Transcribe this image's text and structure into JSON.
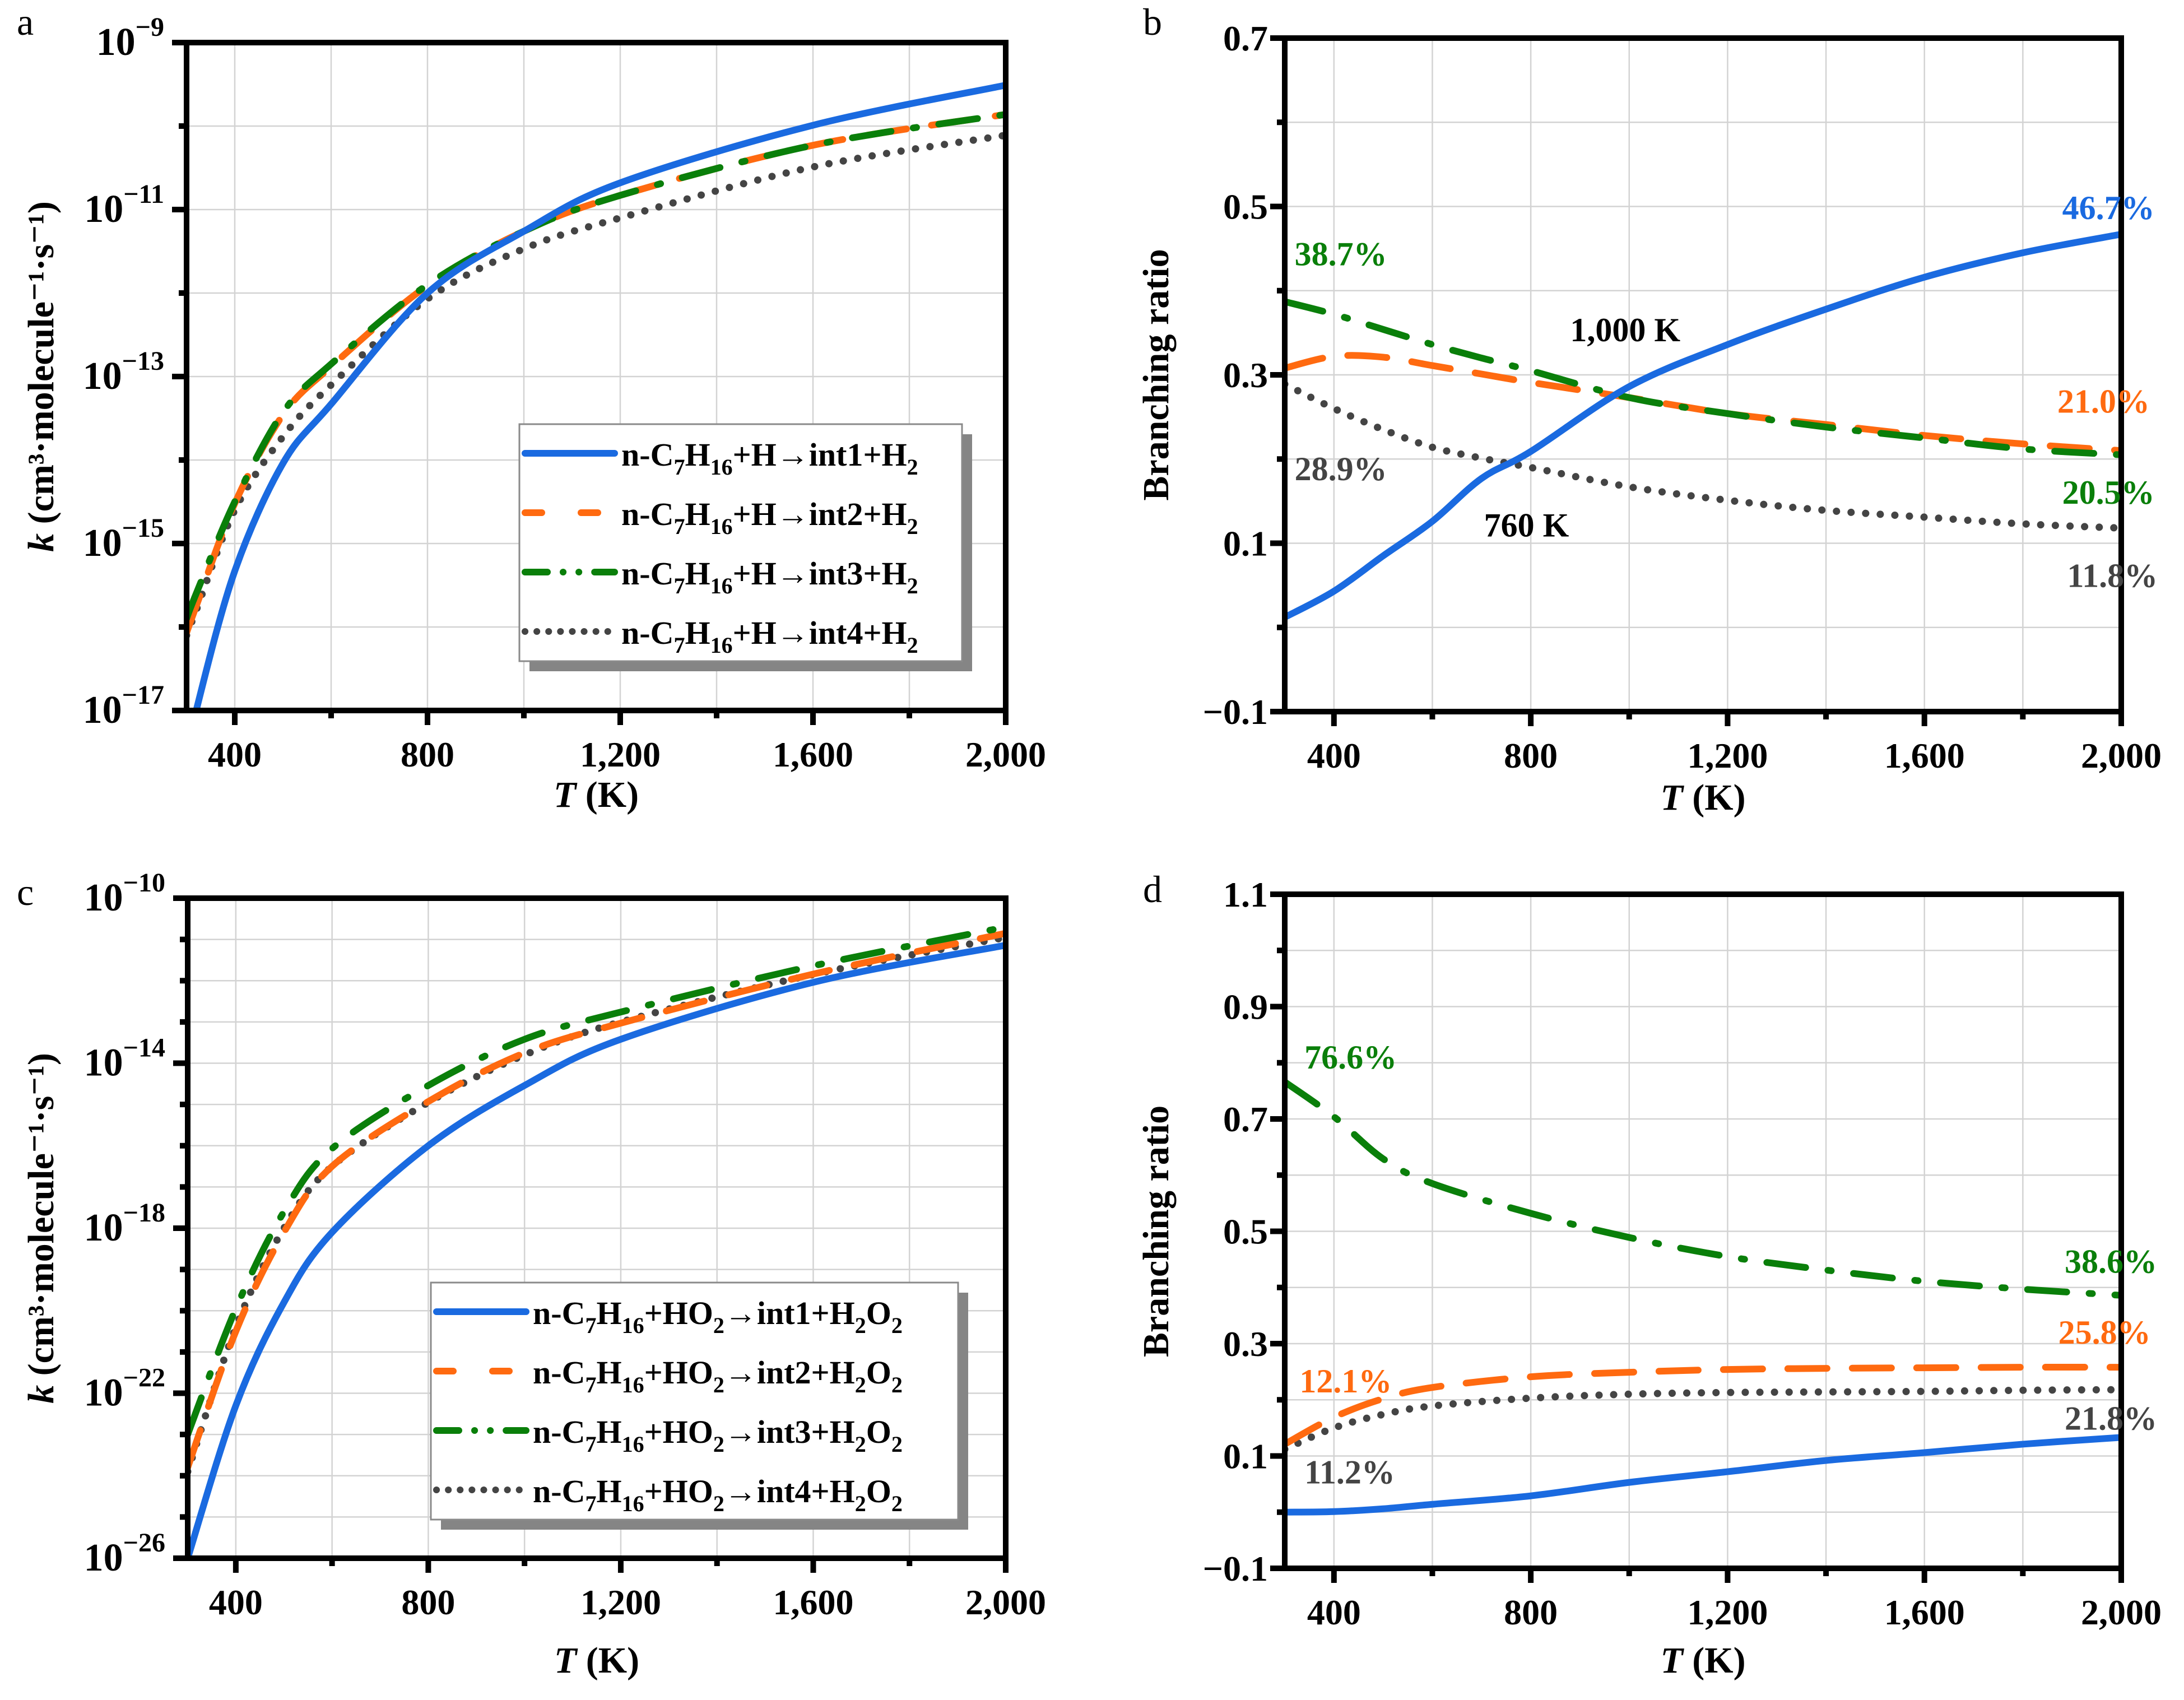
{
  "colors": {
    "int1": "#1a6ae0",
    "int2": "#ff6a10",
    "int3": "#0a7f0a",
    "int4": "#444444"
  },
  "chart_data": [
    {
      "panel": "a",
      "type": "line",
      "title": "",
      "xlabel_italic": "T",
      "xlabel_unit": " (K)",
      "ylabel_italic": "k",
      "ylabel_rest": " (cm³·molecule⁻¹·s⁻¹)",
      "yscale": "log",
      "xlim": [
        300,
        2000
      ],
      "ylim_log10": [
        -17,
        -9
      ],
      "x_ticks": [
        400,
        800,
        1200,
        1600,
        2000
      ],
      "x_tick_labels": [
        "400",
        "800",
        "1,200",
        "1,600",
        "2,000"
      ],
      "y_ticks_log10": [
        -9,
        -11,
        -13,
        -15,
        -17
      ],
      "y_tick_labels": [
        {
          "base": "10",
          "exp": "−9"
        },
        {
          "base": "10",
          "exp": "−11"
        },
        {
          "base": "10",
          "exp": "−13"
        },
        {
          "base": "10",
          "exp": "−15"
        },
        {
          "base": "10",
          "exp": "−17"
        }
      ],
      "grid": true,
      "legend_placement": "bottom-right",
      "x": [
        300,
        320,
        400,
        500,
        600,
        800,
        1000,
        1200,
        1600,
        2000
      ],
      "series": [
        {
          "key": "int1",
          "style": "solid",
          "legend": {
            "pre": "n-C",
            "s1": "7",
            "mid": "H",
            "s2": "16",
            "post": "+H→int1+H",
            "s3": "2",
            "post2": ""
          },
          "log10_k": [
            -17.6,
            -17.0,
            -15.33,
            -14.04,
            -13.33,
            -12.0,
            -11.26,
            -10.68,
            -9.99,
            -9.51
          ]
        },
        {
          "key": "int2",
          "style": "dash",
          "legend": {
            "pre": "n-C",
            "s1": "7",
            "mid": "H",
            "s2": "16",
            "post": "+H→int2+H",
            "s3": "2",
            "post2": ""
          },
          "log10_k": [
            -16.07,
            -15.75,
            -14.52,
            -13.46,
            -12.88,
            -11.91,
            -11.26,
            -10.83,
            -10.23,
            -9.86
          ]
        },
        {
          "key": "int3",
          "style": "dashdot",
          "legend": {
            "pre": "n-C",
            "s1": "7",
            "mid": "H",
            "s2": "16",
            "post": "+H→int3+H",
            "s3": "2",
            "post2": ""
          },
          "log10_k": [
            -15.9,
            -15.6,
            -14.5,
            -13.43,
            -12.85,
            -11.9,
            -11.26,
            -10.83,
            -10.23,
            -9.86
          ]
        },
        {
          "key": "int4",
          "style": "dot",
          "legend": {
            "pre": "n-C",
            "s1": "7",
            "mid": "H",
            "s2": "16",
            "post": "+H→int4+H",
            "s3": "2",
            "post2": ""
          },
          "log10_k": [
            -16.1,
            -15.8,
            -14.6,
            -13.72,
            -13.1,
            -12.07,
            -11.47,
            -11.1,
            -10.49,
            -10.11
          ]
        }
      ]
    },
    {
      "panel": "b",
      "type": "line",
      "title": "",
      "xlabel_italic": "T",
      "xlabel_unit": " (K)",
      "ylabel": "Branching ratio",
      "xlim": [
        300,
        2000
      ],
      "ylim": [
        -0.1,
        0.7
      ],
      "x_ticks": [
        400,
        800,
        1200,
        1600,
        2000
      ],
      "x_tick_labels": [
        "400",
        "800",
        "1,200",
        "1,600",
        "2,000"
      ],
      "y_ticks": [
        0.7,
        0.5,
        0.3,
        0.1,
        -0.1
      ],
      "y_tick_labels": [
        "0.7",
        "0.5",
        "0.3",
        "0.1",
        "−0.1"
      ],
      "grid": true,
      "x": [
        300,
        400,
        500,
        600,
        700,
        800,
        1000,
        1200,
        1400,
        1600,
        1800,
        2000
      ],
      "series": [
        {
          "key": "int1",
          "style": "solid",
          "values": [
            0.012,
            0.043,
            0.085,
            0.126,
            0.177,
            0.209,
            0.286,
            0.336,
            0.378,
            0.416,
            0.445,
            0.467
          ]
        },
        {
          "key": "int2",
          "style": "dash",
          "values": [
            0.308,
            0.322,
            0.321,
            0.311,
            0.301,
            0.291,
            0.273,
            0.254,
            0.241,
            0.228,
            0.218,
            0.21
          ]
        },
        {
          "key": "int3",
          "style": "dashdot",
          "values": [
            0.387,
            0.372,
            0.354,
            0.336,
            0.32,
            0.305,
            0.273,
            0.254,
            0.238,
            0.225,
            0.212,
            0.205
          ]
        },
        {
          "key": "int4",
          "style": "dot",
          "values": [
            0.289,
            0.26,
            0.235,
            0.214,
            0.201,
            0.19,
            0.167,
            0.151,
            0.139,
            0.131,
            0.123,
            0.118
          ]
        }
      ],
      "annotations": [
        {
          "text": "46.7%",
          "key": "int1",
          "x": 1880,
          "y": 0.485
        },
        {
          "text": "38.7%",
          "key": "int3",
          "x": 320,
          "y": 0.43
        },
        {
          "text": "1,000 K",
          "key": "black",
          "x": 880,
          "y": 0.34
        },
        {
          "text": "21.0%",
          "key": "int2",
          "x": 1870,
          "y": 0.255
        },
        {
          "text": "28.9%",
          "key": "int4",
          "x": 320,
          "y": 0.175
        },
        {
          "text": "20.5%",
          "key": "int3",
          "x": 1880,
          "y": 0.147
        },
        {
          "text": "760 K",
          "key": "black",
          "x": 705,
          "y": 0.108
        },
        {
          "text": "11.8%",
          "key": "int4",
          "x": 1890,
          "y": 0.048
        }
      ]
    },
    {
      "panel": "c",
      "type": "line",
      "title": "",
      "xlabel_italic": "T",
      "xlabel_unit": " (K)",
      "ylabel_italic": "k",
      "ylabel_rest": " (cm³·molecule⁻¹·s⁻¹)",
      "yscale": "log",
      "xlim": [
        300,
        2000
      ],
      "ylim_log10": [
        -26,
        -10
      ],
      "x_ticks": [
        400,
        800,
        1200,
        1600,
        2000
      ],
      "x_tick_labels": [
        "400",
        "800",
        "1,200",
        "1,600",
        "2,000"
      ],
      "y_ticks_log10": [
        -10,
        -14,
        -18,
        -22,
        -26
      ],
      "y_tick_labels": [
        {
          "base": "10",
          "exp": "−10"
        },
        {
          "base": "10",
          "exp": "−14"
        },
        {
          "base": "10",
          "exp": "−18"
        },
        {
          "base": "10",
          "exp": "−22"
        },
        {
          "base": "10",
          "exp": "−26"
        }
      ],
      "grid": true,
      "legend_placement": "bottom-right",
      "x": [
        300,
        400,
        500,
        600,
        800,
        1000,
        1200,
        1600,
        2000
      ],
      "series": [
        {
          "key": "int1",
          "style": "solid",
          "legend": {
            "pre": "n-C",
            "s1": "7",
            "mid": "H",
            "s2": "16",
            "post": "+HO",
            "s3": "2",
            "post2": "→int1+H",
            "s4": "2",
            "post3": "O",
            "s5": "2"
          },
          "log10_k": [
            -26.0,
            -22.3,
            -19.8,
            -18.1,
            -16.0,
            -14.54,
            -13.42,
            -12.04,
            -11.14
          ]
        },
        {
          "key": "int2",
          "style": "dash",
          "legend": {
            "pre": "n-C",
            "s1": "7",
            "mid": "H",
            "s2": "16",
            "post": "+HO",
            "s3": "2",
            "post2": "→int2+H",
            "s4": "2",
            "post3": "O",
            "s5": "2"
          },
          "log10_k": [
            -23.8,
            -20.5,
            -18.1,
            -16.5,
            -14.93,
            -13.75,
            -13.03,
            -11.84,
            -10.85
          ]
        },
        {
          "key": "int3",
          "style": "dashdot",
          "legend": {
            "pre": "n-C",
            "s1": "7",
            "mid": "H",
            "s2": "16",
            "post": "+HO",
            "s3": "2",
            "post2": "→int3+H",
            "s4": "2",
            "post3": "O",
            "s5": "2"
          },
          "log10_k": [
            -23.0,
            -19.95,
            -17.6,
            -16.07,
            -14.54,
            -13.42,
            -12.76,
            -11.64,
            -10.7
          ]
        },
        {
          "key": "int4",
          "style": "dot",
          "legend": {
            "pre": "n-C",
            "s1": "7",
            "mid": "H",
            "s2": "16",
            "post": "+HO",
            "s3": "2",
            "post2": "→int4+H",
            "s4": "2",
            "post3": "O",
            "s5": "2"
          },
          "log10_k": [
            -23.9,
            -20.4,
            -18.0,
            -16.5,
            -14.95,
            -13.8,
            -13.0,
            -11.85,
            -10.95
          ]
        }
      ]
    },
    {
      "panel": "d",
      "type": "line",
      "title": "",
      "xlabel_italic": "T",
      "xlabel_unit": " (K)",
      "ylabel": "Branching ratio",
      "xlim": [
        300,
        2000
      ],
      "ylim": [
        -0.1,
        1.1
      ],
      "x_ticks": [
        400,
        800,
        1200,
        1600,
        2000
      ],
      "x_tick_labels": [
        "400",
        "800",
        "1,200",
        "1,600",
        "2,000"
      ],
      "y_ticks": [
        1.1,
        0.9,
        0.7,
        0.5,
        0.3,
        0.1,
        -0.1
      ],
      "y_tick_labels": [
        "1.1",
        "0.9",
        "0.7",
        "0.5",
        "0.3",
        "0.1",
        "−0.1"
      ],
      "grid": true,
      "x": [
        300,
        400,
        500,
        600,
        800,
        1000,
        1200,
        1400,
        1600,
        1800,
        2000
      ],
      "series": [
        {
          "key": "int1",
          "style": "solid",
          "values": [
            0.0,
            0.001,
            0.006,
            0.014,
            0.029,
            0.053,
            0.072,
            0.092,
            0.106,
            0.121,
            0.133
          ]
        },
        {
          "key": "int2",
          "style": "dash",
          "values": [
            0.121,
            0.169,
            0.202,
            0.222,
            0.241,
            0.249,
            0.254,
            0.256,
            0.257,
            0.258,
            0.258
          ]
        },
        {
          "key": "int3",
          "style": "dashdot",
          "values": [
            0.766,
            0.704,
            0.629,
            0.585,
            0.532,
            0.489,
            0.455,
            0.431,
            0.411,
            0.397,
            0.386
          ]
        },
        {
          "key": "int4",
          "style": "dot",
          "values": [
            0.112,
            0.15,
            0.174,
            0.189,
            0.203,
            0.21,
            0.213,
            0.214,
            0.215,
            0.217,
            0.218
          ]
        }
      ],
      "annotations": [
        {
          "text": "76.6%",
          "key": "int3",
          "x": 340,
          "y": 0.79
        },
        {
          "text": "38.6%",
          "key": "int3",
          "x": 1885,
          "y": 0.426
        },
        {
          "text": "25.8%",
          "key": "int2",
          "x": 1872,
          "y": 0.3
        },
        {
          "text": "12.1%",
          "key": "int2",
          "x": 330,
          "y": 0.213
        },
        {
          "text": "21.8%",
          "key": "int4",
          "x": 1885,
          "y": 0.147
        },
        {
          "text": "11.2%",
          "key": "int4",
          "x": 340,
          "y": 0.051
        }
      ]
    }
  ],
  "panel_letters": [
    "a",
    "b",
    "c",
    "d"
  ]
}
